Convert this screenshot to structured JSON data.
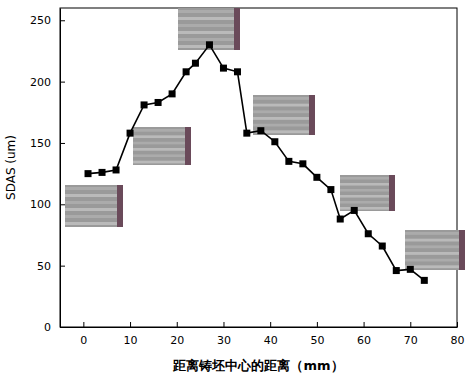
{
  "chart_data": {
    "type": "line",
    "x_label": "距离铸坯中心的距离（mm）",
    "y_label": "SDAS (um)",
    "x": [
      1,
      4,
      7,
      10,
      13,
      16,
      19,
      22,
      24,
      27,
      30,
      33,
      35,
      38,
      41,
      44,
      47,
      50,
      53,
      55,
      58,
      61,
      64,
      67,
      70,
      73
    ],
    "series": [
      {
        "name": "SDAS",
        "color": "#000000",
        "marker": "square",
        "line_style": "solid",
        "values": [
          125,
          126,
          128,
          158,
          181,
          183,
          190,
          208,
          215,
          230,
          211,
          208,
          158,
          160,
          151,
          135,
          133,
          122,
          112,
          88,
          95,
          76,
          66,
          46,
          47,
          38
        ]
      }
    ],
    "xlim": [
      -5,
      80
    ],
    "xticks": [
      0,
      10,
      20,
      30,
      40,
      50,
      60,
      70,
      80
    ],
    "ylim": [
      0,
      260
    ],
    "yticks": [
      0,
      50,
      100,
      150,
      200,
      250
    ],
    "grid": false
  }
}
